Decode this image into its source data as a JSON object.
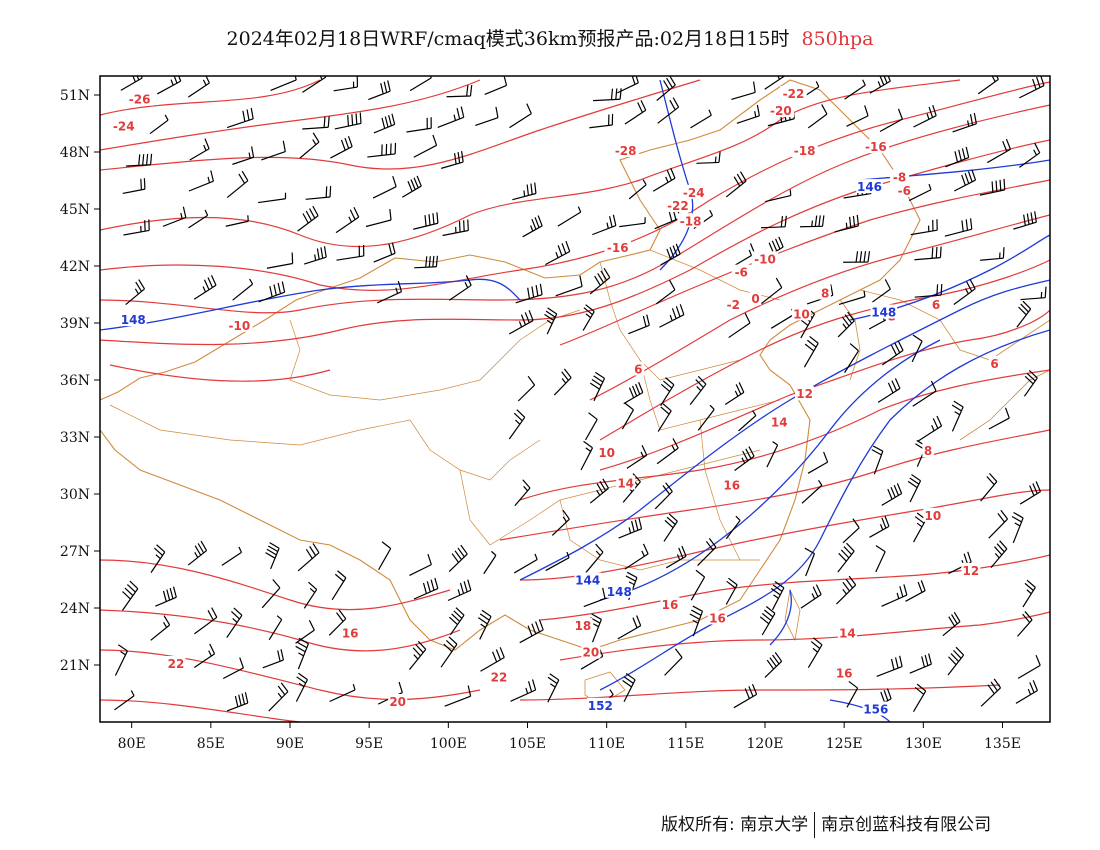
{
  "title": {
    "main": "2024年02月18日WRF/cmaq模式36km预报产品:02月18日15时",
    "level": "850hpa"
  },
  "map": {
    "lat_ticks": [
      "51N",
      "48N",
      "45N",
      "42N",
      "39N",
      "36N",
      "33N",
      "30N",
      "27N",
      "24N",
      "21N"
    ],
    "lon_ticks": [
      "80E",
      "85E",
      "90E",
      "95E",
      "100E",
      "105E",
      "110E",
      "115E",
      "120E",
      "125E",
      "130E",
      "135E"
    ],
    "lat_range": [
      18,
      52
    ],
    "lon_range": [
      78,
      138
    ],
    "colors": {
      "temperature": "#e23b3b",
      "height": "#1f3ad6",
      "border": "#d08a3c",
      "wind": "#000000"
    },
    "temperature_labels": [
      {
        "text": "-26",
        "lon": 80.5,
        "lat": 50.7
      },
      {
        "text": "-24",
        "lon": 79.5,
        "lat": 49.3
      },
      {
        "text": "-28",
        "lon": 111.2,
        "lat": 48.0
      },
      {
        "text": "-22",
        "lon": 121.8,
        "lat": 51.0
      },
      {
        "text": "-20",
        "lon": 121.0,
        "lat": 50.1
      },
      {
        "text": "-18",
        "lon": 122.5,
        "lat": 48.0
      },
      {
        "text": "-16",
        "lon": 127.0,
        "lat": 48.2
      },
      {
        "text": "-8",
        "lon": 128.5,
        "lat": 46.6
      },
      {
        "text": "-6",
        "lon": 128.8,
        "lat": 45.9
      },
      {
        "text": "-24",
        "lon": 115.5,
        "lat": 45.8
      },
      {
        "text": "-22",
        "lon": 114.5,
        "lat": 45.1
      },
      {
        "text": "-18",
        "lon": 115.3,
        "lat": 44.3
      },
      {
        "text": "-16",
        "lon": 110.7,
        "lat": 42.9
      },
      {
        "text": "-10",
        "lon": 120.0,
        "lat": 42.3
      },
      {
        "text": "-6",
        "lon": 118.5,
        "lat": 41.6
      },
      {
        "text": "-2",
        "lon": 118.0,
        "lat": 39.9
      },
      {
        "text": "0",
        "lon": 119.4,
        "lat": 40.2
      },
      {
        "text": "8",
        "lon": 123.8,
        "lat": 40.5
      },
      {
        "text": "10",
        "lon": 122.3,
        "lat": 39.4
      },
      {
        "text": "-10",
        "lon": 86.8,
        "lat": 38.8
      },
      {
        "text": "6",
        "lon": 112.0,
        "lat": 36.5
      },
      {
        "text": "14",
        "lon": 120.9,
        "lat": 33.7
      },
      {
        "text": "12",
        "lon": 122.5,
        "lat": 35.2
      },
      {
        "text": "10",
        "lon": 110.0,
        "lat": 32.1
      },
      {
        "text": "14",
        "lon": 111.2,
        "lat": 30.5
      },
      {
        "text": "16",
        "lon": 117.9,
        "lat": 30.4
      },
      {
        "text": "8",
        "lon": 128.0,
        "lat": 39.3
      },
      {
        "text": "6",
        "lon": 130.8,
        "lat": 39.9
      },
      {
        "text": "6",
        "lon": 134.5,
        "lat": 36.8
      },
      {
        "text": "8",
        "lon": 130.3,
        "lat": 32.2
      },
      {
        "text": "10",
        "lon": 130.6,
        "lat": 28.8
      },
      {
        "text": "12",
        "lon": 133.0,
        "lat": 25.9
      },
      {
        "text": "14",
        "lon": 125.2,
        "lat": 22.6
      },
      {
        "text": "16",
        "lon": 125.0,
        "lat": 20.5
      },
      {
        "text": "16",
        "lon": 93.8,
        "lat": 22.6
      },
      {
        "text": "22",
        "lon": 82.8,
        "lat": 21.0
      },
      {
        "text": "20",
        "lon": 96.8,
        "lat": 19.0
      },
      {
        "text": "22",
        "lon": 103.2,
        "lat": 20.3
      },
      {
        "text": "18",
        "lon": 108.5,
        "lat": 23.0
      },
      {
        "text": "20",
        "lon": 109.0,
        "lat": 21.6
      },
      {
        "text": "16",
        "lon": 114.0,
        "lat": 24.1
      },
      {
        "text": "16",
        "lon": 117.0,
        "lat": 23.4
      }
    ],
    "height_labels": [
      {
        "text": "146",
        "lon": 126.6,
        "lat": 46.1
      },
      {
        "text": "148",
        "lon": 80.1,
        "lat": 39.1
      },
      {
        "text": "148",
        "lon": 127.5,
        "lat": 39.5
      },
      {
        "text": "144",
        "lon": 108.8,
        "lat": 25.4
      },
      {
        "text": "148",
        "lon": 110.8,
        "lat": 24.8
      },
      {
        "text": "152",
        "lon": 109.6,
        "lat": 18.8
      },
      {
        "text": "156",
        "lon": 127.0,
        "lat": 18.6
      }
    ]
  },
  "footer": {
    "left": "版权所有: 南京大学",
    "right": "南京创蓝科技有限公司"
  }
}
